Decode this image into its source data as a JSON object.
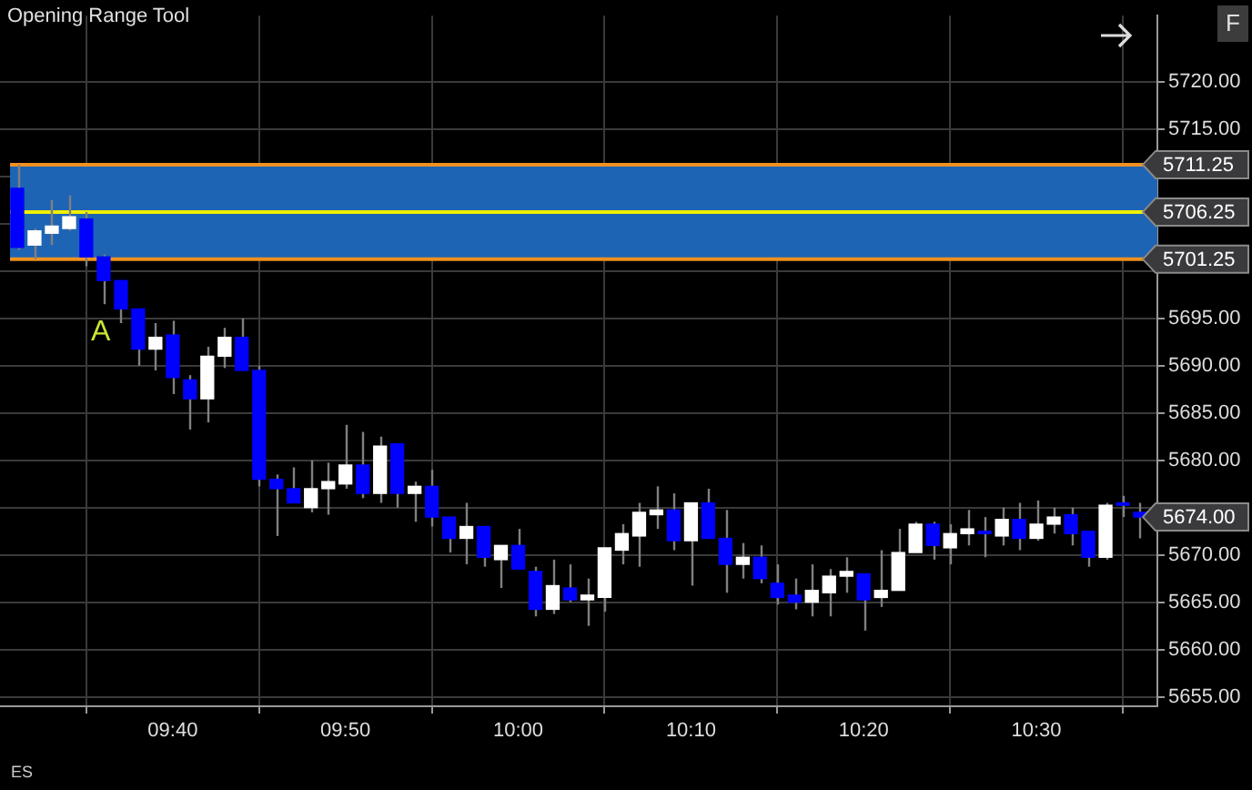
{
  "chart_data": {
    "type": "candlestick",
    "title": "Opening Range Tool",
    "x": [
      9.5167,
      9.5333,
      9.55,
      9.5667,
      9.5833,
      9.6,
      9.6167,
      9.6333,
      9.65,
      9.6667,
      9.6833,
      9.7,
      9.7167,
      9.7333,
      9.75,
      9.7667,
      9.7833,
      9.8,
      9.8167,
      9.8333,
      9.85,
      9.8667,
      9.8833,
      9.9,
      9.9167,
      9.9333,
      9.95,
      9.9667,
      9.9833,
      10,
      10.0167,
      10.0333,
      10.05,
      10.0667,
      10.0833,
      10.1,
      10.1167,
      10.1333,
      10.15,
      10.1667,
      10.1833,
      10.2,
      10.2167,
      10.2333,
      10.25,
      10.2667,
      10.2833,
      10.3,
      10.3167,
      10.3333,
      10.35,
      10.3667,
      10.3833,
      10.4,
      10.4167,
      10.4333,
      10.45,
      10.4667,
      10.4833,
      10.5,
      10.5167,
      10.5333,
      10.55,
      10.5667,
      10.5833,
      10.6
    ],
    "ohlc": [
      [
        5708.75,
        5711.25,
        5702.25,
        5702.5
      ],
      [
        5702.75,
        5704.5,
        5701.25,
        5704.25
      ],
      [
        5704,
        5707.5,
        5702.75,
        5704.75
      ],
      [
        5704.5,
        5708,
        5704.25,
        5705.75
      ],
      [
        5705.5,
        5706.25,
        5700.5,
        5701.5
      ],
      [
        5701.5,
        5701.75,
        5696.5,
        5699
      ],
      [
        5699,
        5699,
        5694.5,
        5696
      ],
      [
        5696,
        5696,
        5690,
        5691.75
      ],
      [
        5691.75,
        5694.5,
        5689.5,
        5693
      ],
      [
        5693.25,
        5694.75,
        5687,
        5688.75
      ],
      [
        5688.5,
        5689,
        5683.25,
        5686.5
      ],
      [
        5686.5,
        5692,
        5684,
        5691
      ],
      [
        5691,
        5694,
        5689.75,
        5693
      ],
      [
        5693,
        5695,
        5689.5,
        5689.5
      ],
      [
        5689.5,
        5690,
        5677.25,
        5678
      ],
      [
        5678,
        5678.5,
        5672,
        5677
      ],
      [
        5677,
        5679.25,
        5675.5,
        5675.5
      ],
      [
        5675,
        5680,
        5674.5,
        5677
      ],
      [
        5677,
        5679.75,
        5674.25,
        5677.75
      ],
      [
        5677.5,
        5683.75,
        5677,
        5679.5
      ],
      [
        5679.5,
        5683,
        5676,
        5676.5
      ],
      [
        5676.5,
        5682.5,
        5675.5,
        5681.5
      ],
      [
        5681.75,
        5681.75,
        5675,
        5676.5
      ],
      [
        5676.5,
        5677.75,
        5673.5,
        5677.25
      ],
      [
        5677.25,
        5679,
        5673,
        5674
      ],
      [
        5674,
        5674,
        5670.25,
        5671.75
      ],
      [
        5671.75,
        5675.5,
        5669,
        5673
      ],
      [
        5673,
        5673,
        5668.75,
        5669.75
      ],
      [
        5669.5,
        5671,
        5666.5,
        5671
      ],
      [
        5671,
        5672.75,
        5668.5,
        5668.5
      ],
      [
        5668.25,
        5668.75,
        5663.5,
        5664.25
      ],
      [
        5664.25,
        5669.5,
        5663.75,
        5666.75
      ],
      [
        5666.5,
        5669,
        5665,
        5665.25
      ],
      [
        5665.25,
        5667.5,
        5662.5,
        5665.75
      ],
      [
        5665.5,
        5670.75,
        5664,
        5670.75
      ],
      [
        5670.5,
        5673.25,
        5669,
        5672.25
      ],
      [
        5672,
        5675.5,
        5668.75,
        5674.5
      ],
      [
        5674.25,
        5677.25,
        5672.75,
        5674.75
      ],
      [
        5674.75,
        5676.5,
        5670.5,
        5671.5
      ],
      [
        5671.5,
        5675.5,
        5666.75,
        5675.5
      ],
      [
        5675.5,
        5677,
        5671.75,
        5671.75
      ],
      [
        5671.75,
        5674.75,
        5666,
        5669
      ],
      [
        5669,
        5671.25,
        5667.5,
        5669.75
      ],
      [
        5669.75,
        5671,
        5667,
        5667.5
      ],
      [
        5667,
        5669,
        5664.75,
        5665.5
      ],
      [
        5665.75,
        5667.5,
        5664.25,
        5665
      ],
      [
        5665,
        5669,
        5663.5,
        5666.25
      ],
      [
        5666,
        5668.5,
        5663.5,
        5667.75
      ],
      [
        5667.75,
        5669.75,
        5666,
        5668.25
      ],
      [
        5668,
        5668,
        5662,
        5665.25
      ],
      [
        5665.5,
        5670.5,
        5664.5,
        5666.25
      ],
      [
        5666.25,
        5672.75,
        5666.25,
        5670.25
      ],
      [
        5670.25,
        5673.5,
        5670.25,
        5673.25
      ],
      [
        5673.25,
        5673.5,
        5669.5,
        5671
      ],
      [
        5670.75,
        5673.25,
        5669,
        5672.25
      ],
      [
        5672.25,
        5674.75,
        5671,
        5672.75
      ],
      [
        5672.5,
        5674,
        5669.75,
        5672.25
      ],
      [
        5672,
        5675,
        5671,
        5673.75
      ],
      [
        5673.75,
        5675.5,
        5670.5,
        5671.75
      ],
      [
        5671.75,
        5675.75,
        5671.5,
        5673.25
      ],
      [
        5673.25,
        5675,
        5672.25,
        5674
      ],
      [
        5674.25,
        5675,
        5671,
        5672.25
      ],
      [
        5672.5,
        5672.5,
        5668.75,
        5669.75
      ],
      [
        5669.75,
        5675.5,
        5669.5,
        5675.25
      ],
      [
        5675.5,
        5676.25,
        5674,
        5675.25
      ],
      [
        5674.5,
        5675.5,
        5671.75,
        5674
      ]
    ],
    "colors": [
      "#0000ff",
      "#ffffff",
      "#ffffff",
      "#ffffff",
      "#0000ff",
      "#0000ff",
      "#0000ff",
      "#0000ff",
      "#ffffff",
      "#0000ff",
      "#0000ff",
      "#ffffff",
      "#ffffff",
      "#0000ff",
      "#0000ff",
      "#0000ff",
      "#0000ff",
      "#ffffff",
      "#ffffff",
      "#ffffff",
      "#0000ff",
      "#ffffff",
      "#0000ff",
      "#ffffff",
      "#0000ff",
      "#0000ff",
      "#ffffff",
      "#0000ff",
      "#ffffff",
      "#0000ff",
      "#0000ff",
      "#ffffff",
      "#0000ff",
      "#ffffff",
      "#ffffff",
      "#ffffff",
      "#ffffff",
      "#ffffff",
      "#0000ff",
      "#ffffff",
      "#0000ff",
      "#0000ff",
      "#ffffff",
      "#0000ff",
      "#0000ff",
      "#0000ff",
      "#ffffff",
      "#ffffff",
      "#ffffff",
      "#0000ff",
      "#ffffff",
      "#ffffff",
      "#ffffff",
      "#0000ff",
      "#ffffff",
      "#ffffff",
      "#0000ff",
      "#ffffff",
      "#0000ff",
      "#ffffff",
      "#ffffff",
      "#0000ff",
      "#0000ff",
      "#ffffff",
      "#0000ff",
      "#0000ff"
    ],
    "xlim": [
      9.5,
      10.6167
    ],
    "xticks": [
      {
        "value": 9.6667,
        "label": "09:40"
      },
      {
        "value": 9.8333,
        "label": "09:50"
      },
      {
        "value": 10,
        "label": "10:00"
      },
      {
        "value": 10.1667,
        "label": "10:10"
      },
      {
        "value": 10.3333,
        "label": "10:20"
      },
      {
        "value": 10.5,
        "label": "10:30"
      }
    ],
    "ylim": [
      5654,
      5727
    ],
    "yticks": [
      {
        "value": 5655,
        "label": "5655.00"
      },
      {
        "value": 5660,
        "label": "5660.00"
      },
      {
        "value": 5665,
        "label": "5665.00"
      },
      {
        "value": 5670,
        "label": "5670.00"
      },
      {
        "value": 5675,
        "label": null
      },
      {
        "value": 5680,
        "label": "5680.00"
      },
      {
        "value": 5685,
        "label": "5685.00"
      },
      {
        "value": 5690,
        "label": "5690.00"
      },
      {
        "value": 5695,
        "label": "5695.00"
      },
      {
        "value": 5700,
        "label": null
      },
      {
        "value": 5705,
        "label": null
      },
      {
        "value": 5710,
        "label": null
      },
      {
        "value": 5715,
        "label": "5715.00"
      },
      {
        "value": 5720,
        "label": "5720.00"
      }
    ],
    "bands": [
      {
        "axis": "y",
        "from": 5701.25,
        "to": 5711.25,
        "color": "#1e64b4"
      }
    ],
    "ref_lines": [
      {
        "axis": "y",
        "value": 5711.25,
        "label": "5711.25",
        "color": "#f0901e"
      },
      {
        "axis": "y",
        "value": 5706.25,
        "label": "5706.25",
        "color": "#f0f000"
      },
      {
        "axis": "y",
        "value": 5701.25,
        "label": "5701.25",
        "color": "#f0901e"
      }
    ],
    "annotations": [
      "ES",
      "F",
      "A",
      "5674.00"
    ],
    "grid": true,
    "legend": false
  }
}
